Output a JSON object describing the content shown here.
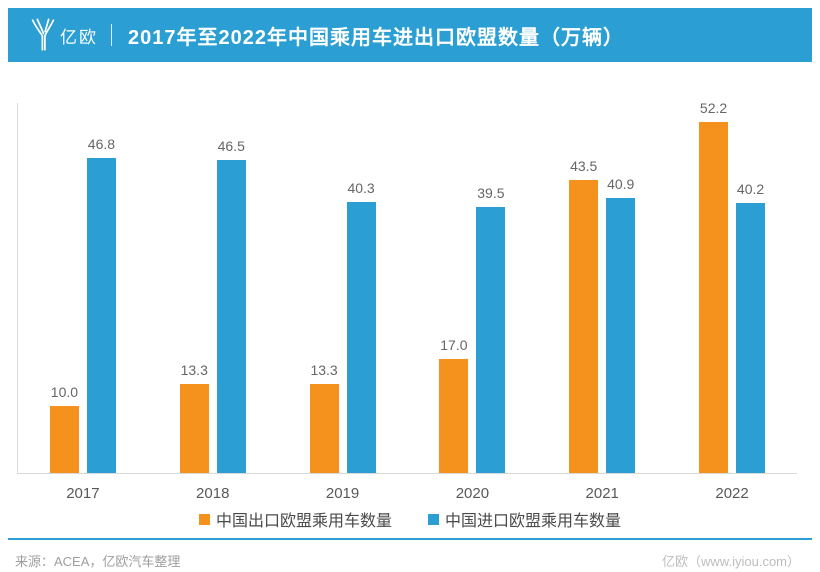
{
  "header": {
    "logo_text": "亿欧",
    "title": "2017年至2022年中国乘用车进出口欧盟数量（万辆）"
  },
  "chart_data": {
    "type": "bar",
    "categories": [
      "2017",
      "2018",
      "2019",
      "2020",
      "2021",
      "2022"
    ],
    "series": [
      {
        "key": "export",
        "name": "中国出口欧盟乘用车数量",
        "color": "#F5921E",
        "values": [
          10.0,
          13.3,
          13.3,
          17.0,
          43.5,
          52.2
        ]
      },
      {
        "key": "import",
        "name": "中国进口欧盟乘用车数量",
        "color": "#2B9FD4",
        "values": [
          46.8,
          46.5,
          40.3,
          39.5,
          40.9,
          40.2
        ]
      }
    ],
    "title": "2017年至2022年中国乘用车进出口欧盟数量（万辆）",
    "xlabel": "",
    "ylabel": "",
    "ylim": [
      0,
      55
    ],
    "grid": false,
    "value_labels": true,
    "value_label_format": "one_decimal",
    "legend_position": "bottom"
  },
  "footer": {
    "source": "来源：ACEA，亿欧汽车整理",
    "credit": "亿欧（www.iyiou.com）"
  },
  "colors": {
    "accent_blue": "#2B9FD4",
    "accent_orange": "#F5921E",
    "axis_gray": "#D9D9D9",
    "value_label_gray": "#666666",
    "tick_label_gray": "#595959"
  }
}
